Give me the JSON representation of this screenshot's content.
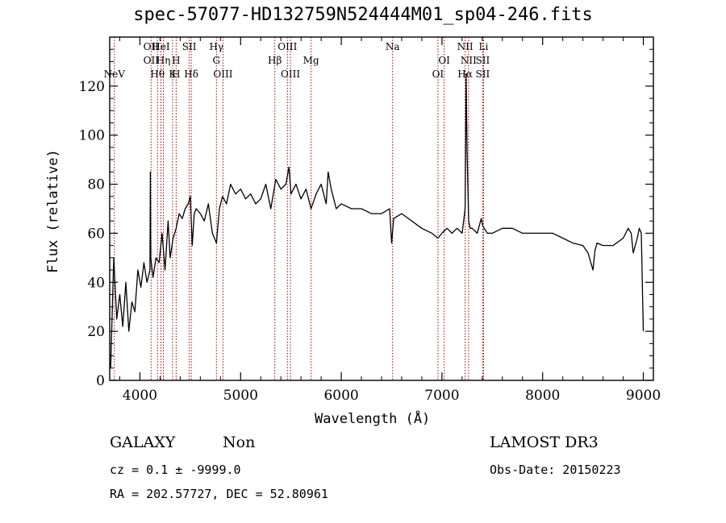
{
  "chart_data": {
    "type": "line",
    "title": "spec-57077-HD132759N524444M01_sp04-246.fits",
    "xlabel": "Wavelength (Å)",
    "ylabel": "Flux (relative)",
    "xlim": [
      3700,
      9100
    ],
    "ylim": [
      0,
      140
    ],
    "xticks": [
      4000,
      5000,
      6000,
      7000,
      8000,
      9000
    ],
    "yticks": [
      0,
      20,
      40,
      60,
      80,
      100,
      120
    ],
    "grid": false,
    "series": [
      {
        "name": "spectrum",
        "x": [
          3710,
          3740,
          3770,
          3800,
          3830,
          3860,
          3890,
          3920,
          3950,
          3980,
          4010,
          4040,
          4070,
          4100,
          4104,
          4108,
          4130,
          4160,
          4190,
          4220,
          4250,
          4280,
          4300,
          4330,
          4360,
          4390,
          4420,
          4450,
          4480,
          4500,
          4520,
          4540,
          4560,
          4600,
          4640,
          4680,
          4720,
          4760,
          4790,
          4820,
          4860,
          4900,
          4950,
          5000,
          5050,
          5100,
          5150,
          5200,
          5250,
          5300,
          5350,
          5400,
          5450,
          5480,
          5500,
          5550,
          5600,
          5650,
          5700,
          5750,
          5800,
          5850,
          5870,
          5900,
          5950,
          6000,
          6100,
          6200,
          6300,
          6400,
          6480,
          6500,
          6520,
          6600,
          6700,
          6800,
          6900,
          6960,
          7000,
          7050,
          7100,
          7150,
          7200,
          7230,
          7240,
          7250,
          7265,
          7280,
          7300,
          7350,
          7390,
          7405,
          7420,
          7450,
          7500,
          7600,
          7700,
          7800,
          7900,
          8000,
          8100,
          8200,
          8300,
          8400,
          8450,
          8500,
          8520,
          8540,
          8600,
          8700,
          8800,
          8850,
          8880,
          8900,
          8940,
          8960,
          8980,
          9000
        ],
        "y": [
          5,
          50,
          25,
          35,
          22,
          40,
          20,
          32,
          28,
          45,
          38,
          48,
          40,
          45,
          85,
          50,
          42,
          50,
          48,
          60,
          45,
          65,
          50,
          58,
          62,
          68,
          66,
          70,
          72,
          75,
          55,
          68,
          70,
          68,
          65,
          72,
          60,
          56,
          70,
          75,
          72,
          80,
          76,
          78,
          74,
          76,
          72,
          74,
          80,
          70,
          82,
          78,
          80,
          87,
          76,
          80,
          74,
          78,
          70,
          76,
          80,
          72,
          85,
          78,
          70,
          72,
          70,
          70,
          68,
          68,
          70,
          56,
          66,
          68,
          65,
          62,
          60,
          58,
          60,
          62,
          60,
          62,
          60,
          70,
          125,
          92,
          65,
          62,
          62,
          60,
          66,
          63,
          62,
          60,
          60,
          62,
          62,
          60,
          60,
          60,
          60,
          58,
          56,
          55,
          52,
          45,
          53,
          56,
          55,
          55,
          58,
          62,
          60,
          52,
          58,
          62,
          60,
          20
        ]
      }
    ],
    "lines": [
      {
        "label": "NeV",
        "wl": 3746,
        "row": 2
      },
      {
        "label": "OII",
        "wl": 4111,
        "row": 0
      },
      {
        "label": "OII",
        "wl": 4111,
        "row": 1
      },
      {
        "label": "Hθ",
        "wl": 4175,
        "row": 2
      },
      {
        "label": "HeI",
        "wl": 4209,
        "row": 0
      },
      {
        "label": "Hη",
        "wl": 4233,
        "row": 1
      },
      {
        "label": "K",
        "wl": 4324,
        "row": 2
      },
      {
        "label": "H",
        "wl": 4360,
        "row": 1
      },
      {
        "label": "H",
        "wl": 4360,
        "row": 2
      },
      {
        "label": "SII",
        "wl": 4490,
        "row": 0
      },
      {
        "label": "Hδ",
        "wl": 4510,
        "row": 2
      },
      {
        "label": "Hγ",
        "wl": 4760,
        "row": 0
      },
      {
        "label": "G",
        "wl": 4760,
        "row": 1
      },
      {
        "label": "OIII",
        "wl": 4825,
        "row": 2
      },
      {
        "label": "Hβ",
        "wl": 5340,
        "row": 1
      },
      {
        "label": "OIII",
        "wl": 5465,
        "row": 0
      },
      {
        "label": "OIII",
        "wl": 5495,
        "row": 2
      },
      {
        "label": "Mg",
        "wl": 5700,
        "row": 1
      },
      {
        "label": "Na",
        "wl": 6510,
        "row": 0
      },
      {
        "label": "OI",
        "wl": 7022,
        "row": 1
      },
      {
        "label": "OI",
        "wl": 6960,
        "row": 2
      },
      {
        "label": "NII",
        "wl": 7230,
        "row": 0
      },
      {
        "label": "NII",
        "wl": 7264,
        "row": 1
      },
      {
        "label": "Hα",
        "wl": 7230,
        "row": 2
      },
      {
        "label": "Li",
        "wl": 7413,
        "row": 0
      },
      {
        "label": "SII",
        "wl": 7405,
        "row": 1
      },
      {
        "label": "SII",
        "wl": 7405,
        "row": 2
      }
    ]
  },
  "footer": {
    "class_label": "GALAXY",
    "subclass": "Non",
    "survey": "LAMOST DR3",
    "cz_line": "cz = 0.1 ± -9999.0",
    "obs_date": "Obs-Date: 20150223",
    "coords": "RA = 202.57727, DEC =  52.80961"
  },
  "colors": {
    "axis": "#000000",
    "spectrum": "#000000",
    "line_marker": "#b00000"
  }
}
